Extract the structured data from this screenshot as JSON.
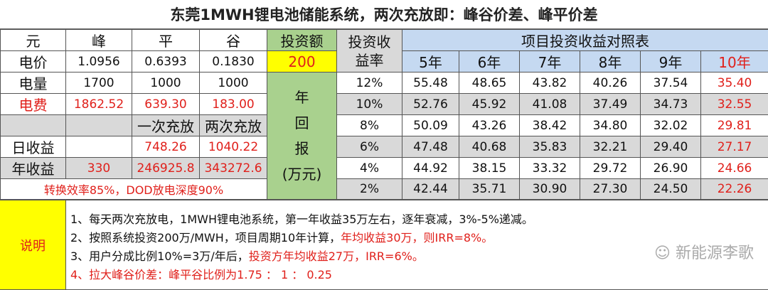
{
  "title": "东莞1MWH锂电池储能系统，两次充放即：峰谷价差、峰平价差",
  "left": {
    "header": [
      "元",
      "峰",
      "平",
      "谷"
    ],
    "price": {
      "label": "电价",
      "values": [
        "1.0956",
        "0.6393",
        "0.1830"
      ]
    },
    "quantity": {
      "label": "电量",
      "values": [
        "1700",
        "1000",
        "1000"
      ]
    },
    "fee": {
      "label": "电费",
      "values": [
        "1862.52",
        "639.30",
        "183.00"
      ]
    },
    "mode": {
      "values": [
        "一次充放",
        "两次充放"
      ]
    },
    "daily": {
      "label": "日收益",
      "values": [
        "748.26",
        "1040.22"
      ]
    },
    "annual": {
      "label": "年收益",
      "values": [
        "330",
        "246925.8",
        "343272.6"
      ]
    },
    "efficiency_note": "转换效率85%，DOD放电深度90%"
  },
  "investment": {
    "label": "投资额",
    "value": "200",
    "return_label": [
      "年",
      "回",
      "报",
      "(万元)"
    ]
  },
  "roi": {
    "rate_label": "投资收益率",
    "table_title": "项目投资收益对照表",
    "years": [
      "5年",
      "6年",
      "7年",
      "8年",
      "9年",
      "10年"
    ],
    "rows": [
      {
        "rate": "12%",
        "values": [
          "55.48",
          "48.65",
          "43.82",
          "40.26",
          "37.54",
          "35.40"
        ]
      },
      {
        "rate": "10%",
        "values": [
          "52.76",
          "45.92",
          "41.08",
          "37.49",
          "34.73",
          "32.55"
        ]
      },
      {
        "rate": "8%",
        "values": [
          "50.09",
          "43.26",
          "38.42",
          "34.80",
          "32.02",
          "29.81"
        ]
      },
      {
        "rate": "6%",
        "values": [
          "47.48",
          "40.68",
          "35.83",
          "32.21",
          "29.40",
          "27.17"
        ]
      },
      {
        "rate": "4%",
        "values": [
          "44.92",
          "38.15",
          "33.32",
          "29.72",
          "26.90",
          "24.66"
        ]
      },
      {
        "rate": "2%",
        "values": [
          "42.44",
          "35.71",
          "30.90",
          "27.30",
          "24.50",
          "22.26"
        ]
      }
    ]
  },
  "notes": {
    "label": "说明",
    "line1": "1、每天两次充放电，1MWH锂电池系统，第一年收益35万左右，逐年衰减，3%-5%递减。",
    "line2a": "2、按照系统投资200万/MWH，项目周期10年计算，",
    "line2b": "年均收益30万，则IRR=8%。",
    "line3a": "3、用户分成比例10%=3万/年后，",
    "line3b": "投资方年均收益27万，IRR=6%。",
    "line4": "4、拉大峰谷价差：峰平谷比例为1.75 ： 1 ： 0.25"
  },
  "watermark": "新能源李歌",
  "colors": {
    "red": "#e0201b",
    "green": "#a9d18e",
    "yellow": "#ffff00",
    "blue": "#c5d9f1",
    "gray": "#d9d9d9"
  }
}
